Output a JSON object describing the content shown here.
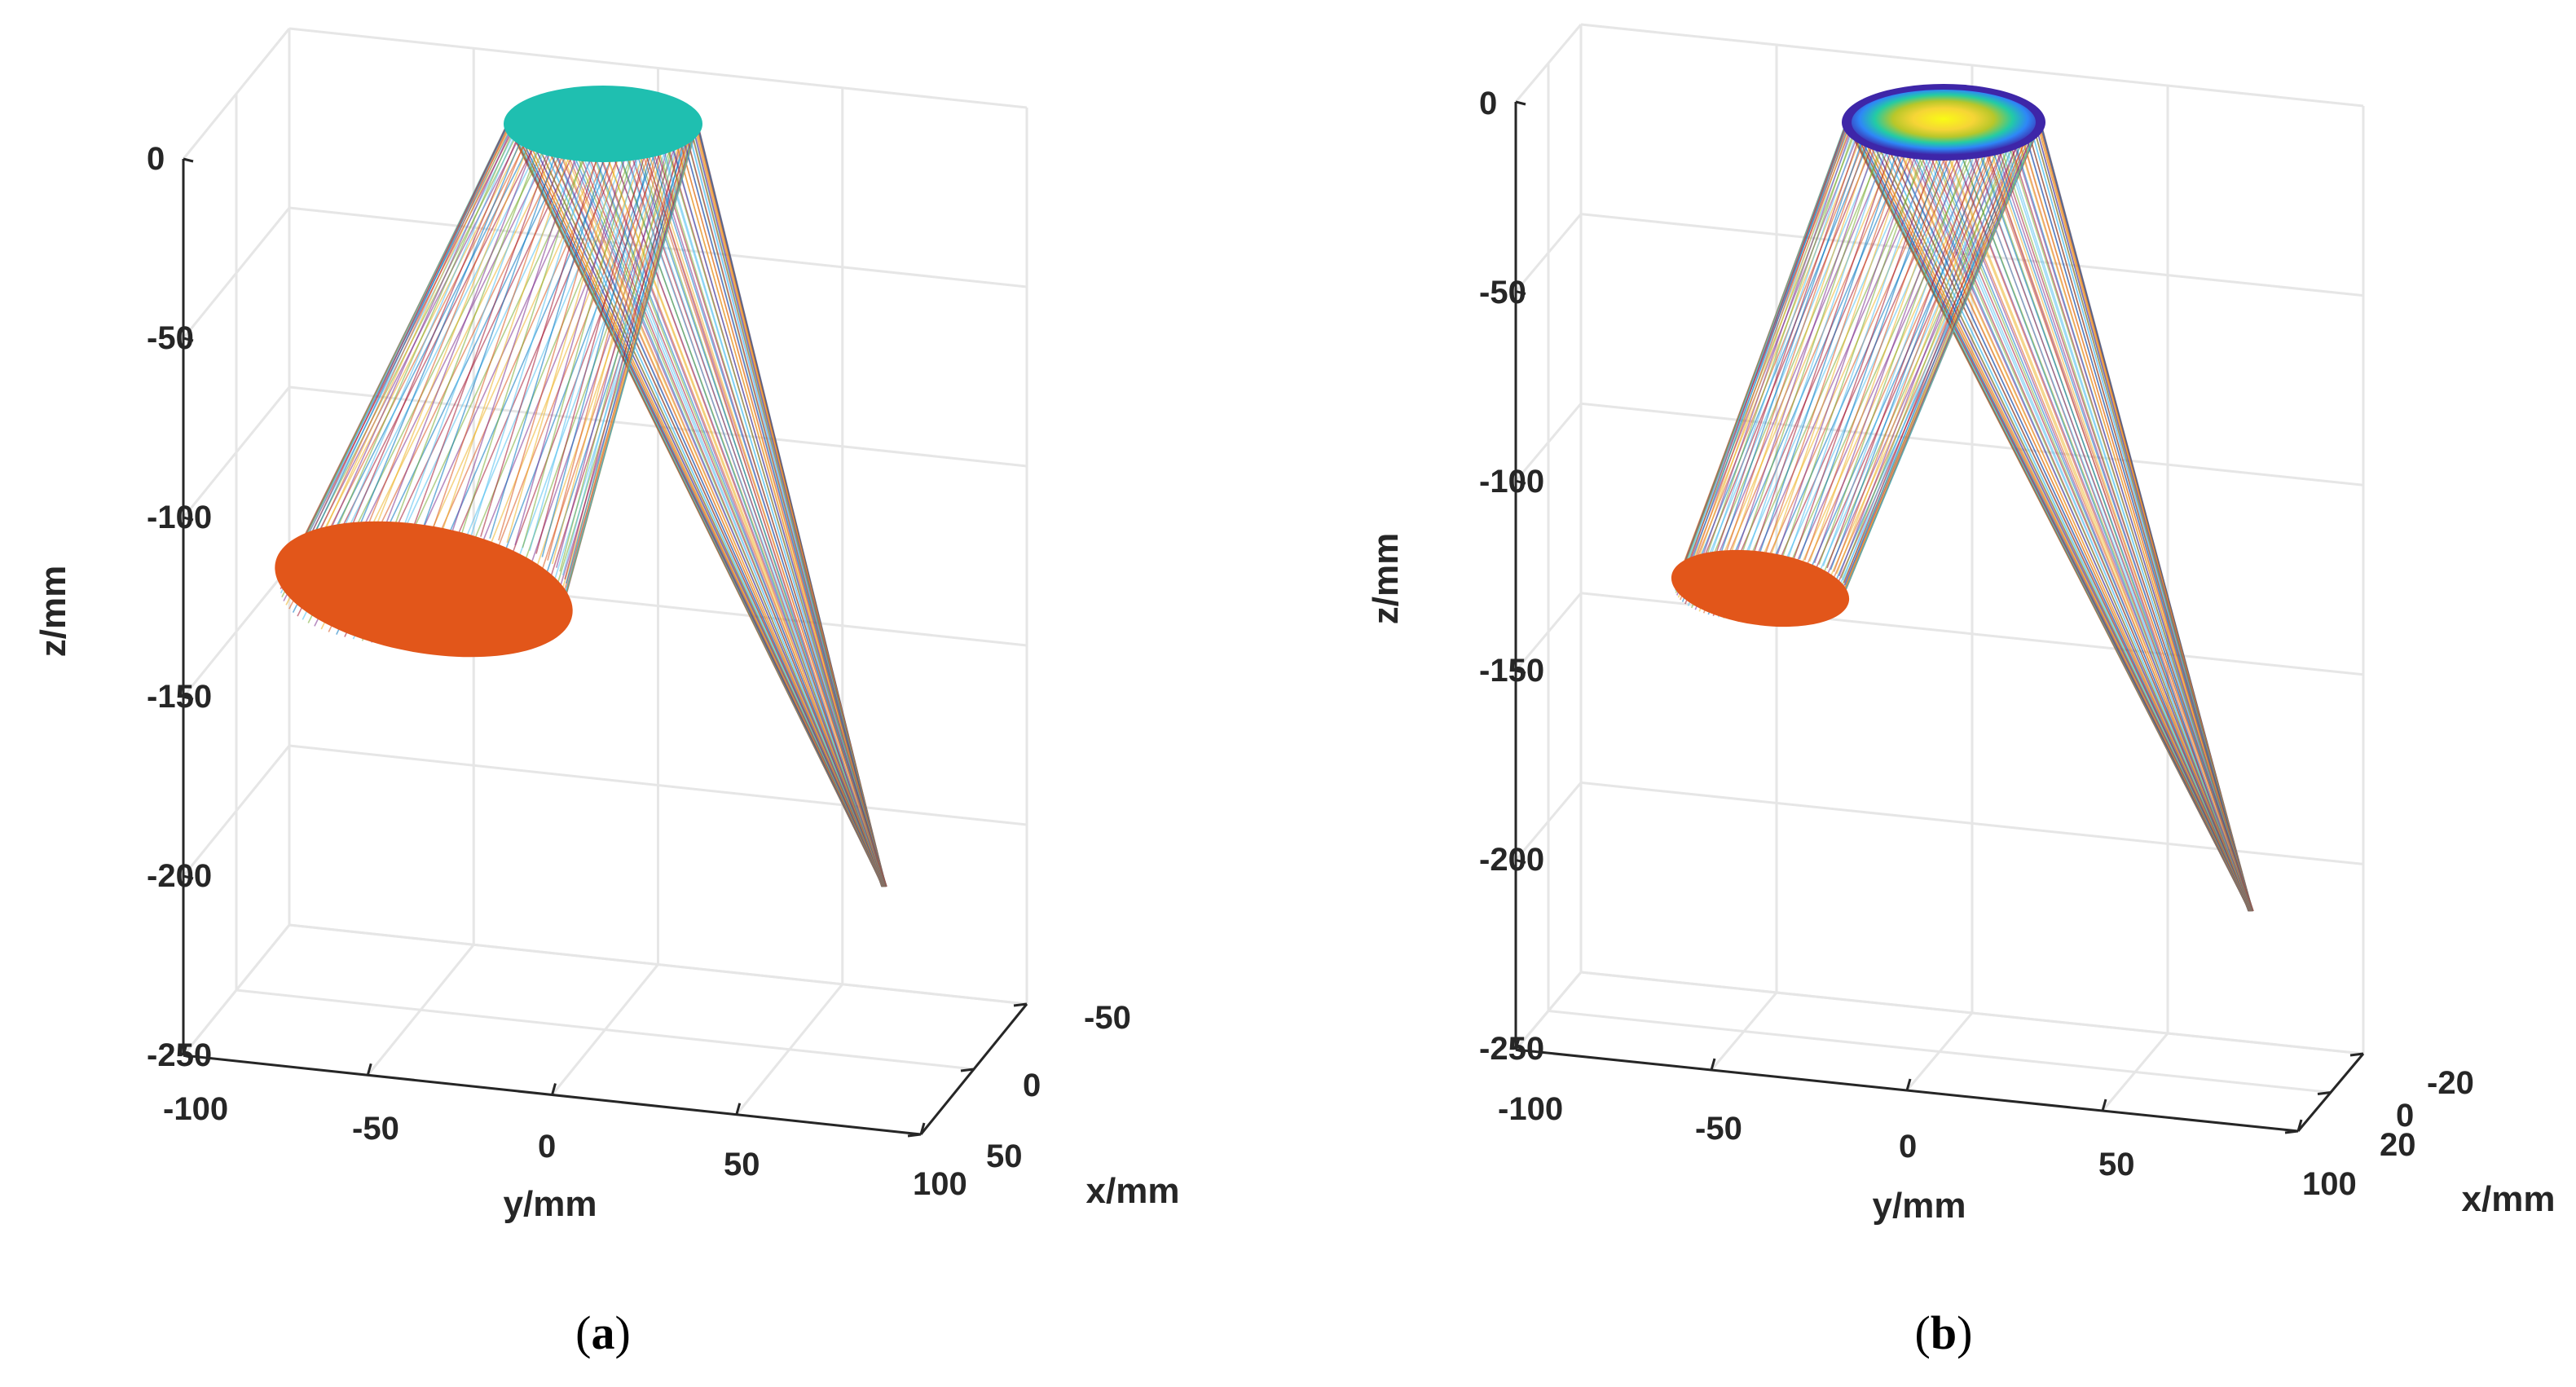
{
  "figure": {
    "panels": [
      {
        "id": "a",
        "label_open": "(",
        "label_letter": "a",
        "label_close": ")"
      },
      {
        "id": "b",
        "label_open": "(",
        "label_letter": "b",
        "label_close": ")"
      }
    ]
  },
  "chart_data": [
    {
      "type": "scatter",
      "title": "",
      "view": "3d",
      "xlabel": "x/mm",
      "ylabel": "y/mm",
      "zlabel": "z/mm",
      "xlim": [
        -50,
        50
      ],
      "ylim": [
        -100,
        100
      ],
      "zlim": [
        -250,
        0
      ],
      "x_ticks": [
        "-50",
        "0",
        "50"
      ],
      "y_ticks": [
        "-100",
        "-50",
        "0",
        "50",
        "100"
      ],
      "z_ticks": [
        "0",
        "-50",
        "-100",
        "-150",
        "-200",
        "-250"
      ],
      "grid": true,
      "elements": [
        {
          "name": "source aperture",
          "color": "#1fbfb0",
          "shape": "disc",
          "center": {
            "y": 5,
            "z": 0
          },
          "radius_y": 25
        },
        {
          "name": "target aperture",
          "color": "#e2561a",
          "shape": "disc",
          "center": {
            "y": -58,
            "z": -120
          },
          "radius_y": 35
        },
        {
          "name": "focal point",
          "shape": "point",
          "approx": {
            "y": 55,
            "z": -205
          }
        }
      ],
      "ray_colors": [
        "#0072bd",
        "#d95319",
        "#edb120",
        "#7e2f8e",
        "#77ac30",
        "#4dbeee",
        "#a2142f"
      ]
    },
    {
      "type": "scatter",
      "title": "",
      "view": "3d",
      "xlabel": "x/mm",
      "ylabel": "y/mm",
      "zlabel": "z/mm",
      "xlim": [
        -20,
        20
      ],
      "ylim": [
        -100,
        100
      ],
      "zlim": [
        -250,
        0
      ],
      "x_ticks": [
        "-20",
        "0",
        "20"
      ],
      "y_ticks": [
        "-100",
        "-50",
        "0",
        "50",
        "100"
      ],
      "z_ticks": [
        "0",
        "-50",
        "-100",
        "-150",
        "-200",
        "-250"
      ],
      "grid": true,
      "elements": [
        {
          "name": "source aperture",
          "shape": "disc",
          "colormap": [
            "#3e26a8",
            "#2e87f7",
            "#23cba5",
            "#b8c72a",
            "#f9fb15"
          ],
          "center": {
            "y": 5,
            "z": 0
          },
          "radius_y": 25
        },
        {
          "name": "target aperture",
          "color": "#e2561a",
          "shape": "disc",
          "center": {
            "y": -35,
            "z": -128
          },
          "radius_y": 22
        },
        {
          "name": "focal point",
          "shape": "point",
          "approx": {
            "y": 60,
            "z": -212
          }
        }
      ],
      "ray_colors": [
        "#0072bd",
        "#d95319",
        "#edb120",
        "#7e2f8e",
        "#77ac30",
        "#4dbeee",
        "#a2142f"
      ]
    }
  ]
}
